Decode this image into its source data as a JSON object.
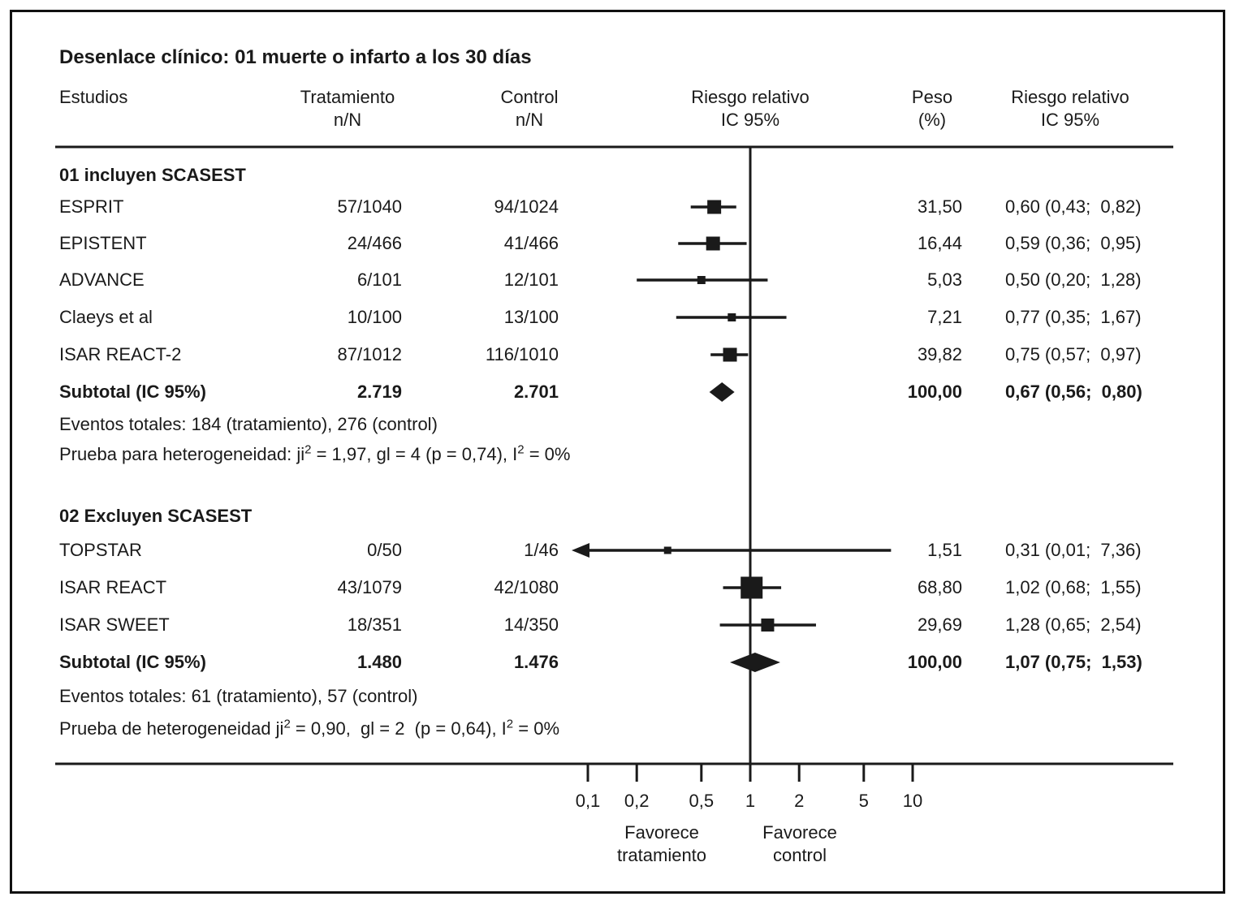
{
  "title": "Desenlace clínico: 01 muerte o infarto a los 30 días",
  "header": {
    "estudios": "Estudios",
    "tratamiento_l1": "Tratamiento",
    "tratamiento_l2": "n/N",
    "control_l1": "Control",
    "control_l2": "n/N",
    "rr_plot_l1": "Riesgo relativo",
    "rr_plot_l2": "IC 95%",
    "peso_l1": "Peso",
    "peso_l2": "(%)",
    "rr_text_l1": "Riesgo relativo",
    "rr_text_l2": "IC 95%"
  },
  "chart_data": {
    "type": "forest",
    "x_axis": {
      "scale": "log",
      "no_effect_value": 1,
      "ticks": [
        {
          "value": 0.1,
          "label": "0,1"
        },
        {
          "value": 0.2,
          "label": "0,2"
        },
        {
          "value": 0.5,
          "label": "0,5"
        },
        {
          "value": 1,
          "label": "1"
        },
        {
          "value": 2,
          "label": "2"
        },
        {
          "value": 5,
          "label": "5"
        },
        {
          "value": 10,
          "label": "10"
        }
      ],
      "favors_left": [
        "Favorece",
        "tratamiento"
      ],
      "favors_right": [
        "Favorece",
        "control"
      ]
    },
    "groups": [
      {
        "label": "01 incluyen SCASEST",
        "studies": [
          {
            "name": "ESPRIT",
            "treatment": "57/1040",
            "control": "94/1024",
            "weight": "31,50",
            "rr_text": "0,60 (0,43;  0,82)",
            "rr": 0.6,
            "ci_low": 0.43,
            "ci_high": 0.82,
            "marker_size": 17
          },
          {
            "name": "EPISTENT",
            "treatment": "24/466",
            "control": "41/466",
            "weight": "16,44",
            "rr_text": "0,59 (0,36;  0,95)",
            "rr": 0.59,
            "ci_low": 0.36,
            "ci_high": 0.95,
            "marker_size": 17
          },
          {
            "name": "ADVANCE",
            "treatment": "6/101",
            "control": "12/101",
            "weight": "5,03",
            "rr_text": "0,50 (0,20;  1,28)",
            "rr": 0.5,
            "ci_low": 0.2,
            "ci_high": 1.28,
            "marker_size": 10
          },
          {
            "name": "Claeys et al",
            "treatment": "10/100",
            "control": "13/100",
            "weight": "7,21",
            "rr_text": "0,77 (0,35;  1,67)",
            "rr": 0.77,
            "ci_low": 0.35,
            "ci_high": 1.67,
            "marker_size": 10
          },
          {
            "name": "ISAR REACT-2",
            "treatment": "87/1012",
            "control": "116/1010",
            "weight": "39,82",
            "rr_text": "0,75 (0,57;  0,97)",
            "rr": 0.75,
            "ci_low": 0.57,
            "ci_high": 0.97,
            "marker_size": 17
          }
        ],
        "subtotal": {
          "name": "Subtotal (IC 95%)",
          "treatment": "2.719",
          "control": "2.701",
          "weight": "100,00",
          "rr_text": "0,67 (0,56;  0,80)",
          "rr": 0.67,
          "ci_low": 0.56,
          "ci_high": 0.8
        },
        "total_events": "Eventos totales: 184 (tratamiento), 276 (control)",
        "heterogeneity": {
          "p1": "Prueba para heterogeneidad: ji",
          "s1": "2",
          "p2": " = 1,97, gl = 4 (p = 0,74), I",
          "s2": "2",
          "p3": " = 0%"
        }
      },
      {
        "label": "02 Excluyen SCASEST",
        "studies": [
          {
            "name": "TOPSTAR",
            "treatment": "0/50",
            "control": "1/46",
            "weight": "1,51",
            "rr_text": "0,31 (0,01;  7,36)",
            "rr": 0.31,
            "ci_low": 0.01,
            "ci_high": 7.36,
            "marker_size": 9,
            "clipped_left": true
          },
          {
            "name": "ISAR REACT",
            "treatment": "43/1079",
            "control": "42/1080",
            "weight": "68,80",
            "rr_text": "1,02 (0,68;  1,55)",
            "rr": 1.02,
            "ci_low": 0.68,
            "ci_high": 1.55,
            "marker_size": 27
          },
          {
            "name": "ISAR SWEET",
            "treatment": "18/351",
            "control": "14/350",
            "weight": "29,69",
            "rr_text": "1,28 (0,65;  2,54)",
            "rr": 1.28,
            "ci_low": 0.65,
            "ci_high": 2.54,
            "marker_size": 16
          }
        ],
        "subtotal": {
          "name": "Subtotal (IC 95%)",
          "treatment": "1.480",
          "control": "1.476",
          "weight": "100,00",
          "rr_text": "1,07 (0,75;  1,53)",
          "rr": 1.07,
          "ci_low": 0.75,
          "ci_high": 1.53
        },
        "total_events": "Eventos totales: 61 (tratamiento), 57 (control)",
        "heterogeneity": {
          "p1": "Prueba de heterogeneidad ji",
          "s1": "2",
          "p2": " = 0,90,  gl = 2  (p = 0,64), I",
          "s2": "2",
          "p3": " = 0%"
        }
      }
    ],
    "colors": {
      "ink": "#1a1a1a",
      "background": "#ffffff"
    }
  }
}
